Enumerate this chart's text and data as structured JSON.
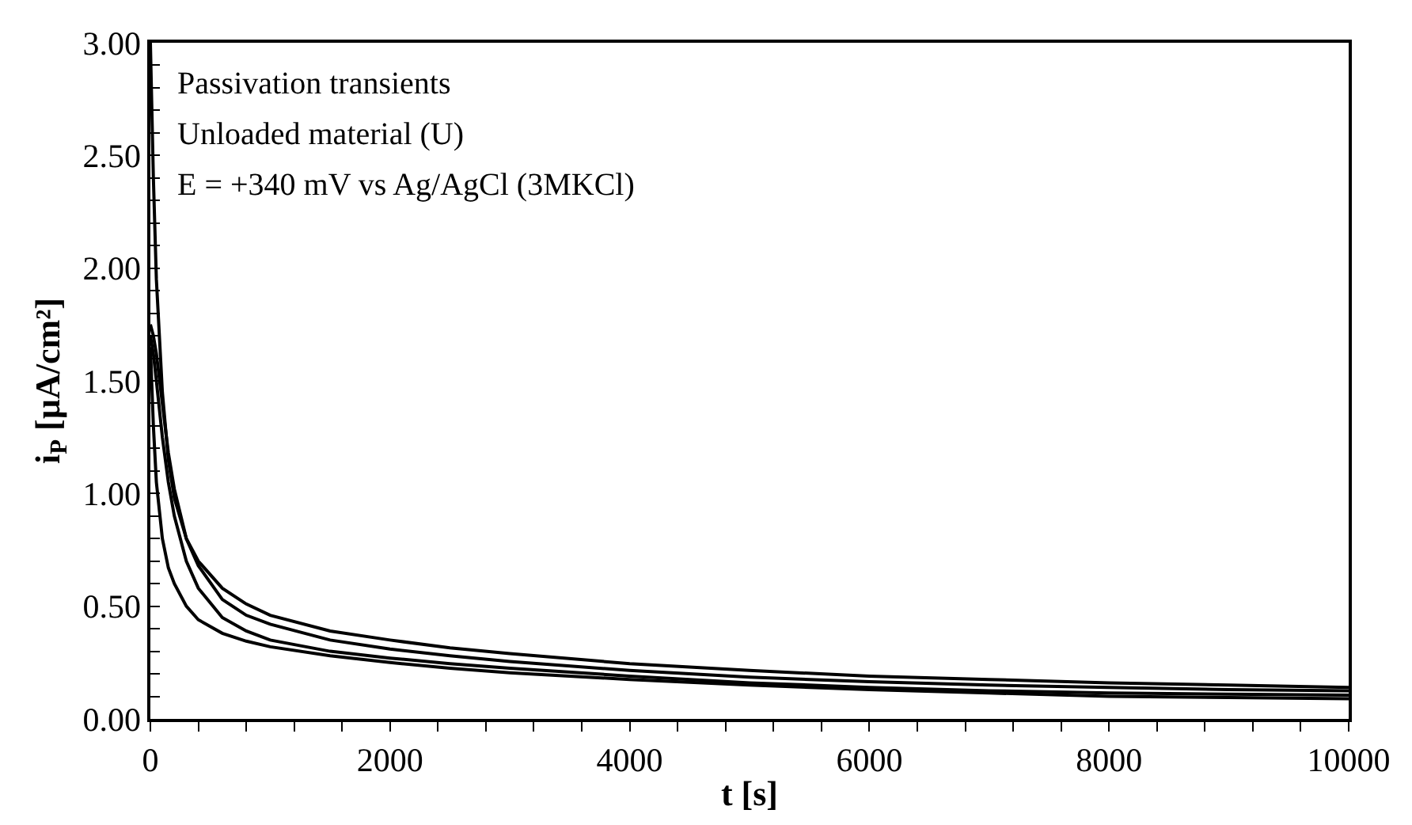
{
  "chart_data": {
    "type": "line",
    "xlabel": "t [s]",
    "ylabel": "i$_{P}$ [µA/cm²]",
    "annotations": [
      "Passivation transients",
      "Unloaded material (U)",
      "E = +340 mV vs Ag/AgCl (3MKCl)"
    ],
    "x": [
      0,
      25,
      50,
      100,
      150,
      200,
      300,
      400,
      600,
      800,
      1000,
      1500,
      2000,
      2500,
      3000,
      4000,
      5000,
      6000,
      7000,
      8000,
      9000,
      10000
    ],
    "series": [
      {
        "color": "#000000",
        "values": [
          3.0,
          2.4,
          1.95,
          1.45,
          1.15,
          0.98,
          0.8,
          0.7,
          0.58,
          0.51,
          0.46,
          0.39,
          0.35,
          0.315,
          0.29,
          0.245,
          0.215,
          0.19,
          0.175,
          0.16,
          0.15,
          0.14
        ]
      },
      {
        "color": "#000000",
        "values": [
          1.75,
          1.7,
          1.62,
          1.4,
          1.18,
          1.02,
          0.8,
          0.68,
          0.53,
          0.46,
          0.42,
          0.35,
          0.31,
          0.28,
          0.255,
          0.215,
          0.185,
          0.165,
          0.15,
          0.14,
          0.13,
          0.125
        ]
      },
      {
        "color": "#000000",
        "values": [
          1.7,
          1.62,
          1.5,
          1.25,
          1.05,
          0.9,
          0.7,
          0.58,
          0.45,
          0.39,
          0.35,
          0.3,
          0.27,
          0.245,
          0.225,
          0.19,
          0.16,
          0.14,
          0.125,
          0.115,
          0.11,
          0.105
        ]
      },
      {
        "color": "#000000",
        "values": [
          1.65,
          1.3,
          1.05,
          0.8,
          0.67,
          0.6,
          0.5,
          0.44,
          0.38,
          0.345,
          0.32,
          0.28,
          0.25,
          0.225,
          0.205,
          0.175,
          0.15,
          0.13,
          0.115,
          0.1,
          0.095,
          0.09
        ]
      }
    ],
    "xlim": [
      0,
      10000
    ],
    "xticks": [
      0,
      {
        "value": 400,
        "label": null
      },
      {
        "value": 800,
        "label": null
      },
      {
        "value": 1200,
        "label": null
      },
      {
        "value": 1600,
        "label": null
      },
      2000,
      {
        "value": 2400,
        "label": null
      },
      {
        "value": 2800,
        "label": null
      },
      {
        "value": 3200,
        "label": null
      },
      {
        "value": 3600,
        "label": null
      },
      4000,
      {
        "value": 4400,
        "label": null
      },
      {
        "value": 4800,
        "label": null
      },
      {
        "value": 5200,
        "label": null
      },
      {
        "value": 5600,
        "label": null
      },
      6000,
      {
        "value": 6400,
        "label": null
      },
      {
        "value": 6800,
        "label": null
      },
      {
        "value": 7200,
        "label": null
      },
      {
        "value": 7600,
        "label": null
      },
      8000,
      {
        "value": 8400,
        "label": null
      },
      {
        "value": 8800,
        "label": null
      },
      {
        "value": 9200,
        "label": null
      },
      {
        "value": 9600,
        "label": null
      },
      10000
    ],
    "ylim": [
      0,
      3
    ],
    "yticks": [
      {
        "value": 0,
        "label": "0.00"
      },
      {
        "value": 0.1,
        "label": null
      },
      {
        "value": 0.2,
        "label": null
      },
      {
        "value": 0.3,
        "label": null
      },
      {
        "value": 0.4,
        "label": null
      },
      {
        "value": 0.5,
        "label": "0.50"
      },
      {
        "value": 0.6,
        "label": null
      },
      {
        "value": 0.7,
        "label": null
      },
      {
        "value": 0.8,
        "label": null
      },
      {
        "value": 0.9,
        "label": null
      },
      {
        "value": 1.0,
        "label": "1.00"
      },
      {
        "value": 1.1,
        "label": null
      },
      {
        "value": 1.2,
        "label": null
      },
      {
        "value": 1.3,
        "label": null
      },
      {
        "value": 1.4,
        "label": null
      },
      {
        "value": 1.5,
        "label": "1.50"
      },
      {
        "value": 1.6,
        "label": null
      },
      {
        "value": 1.7,
        "label": null
      },
      {
        "value": 1.8,
        "label": null
      },
      {
        "value": 1.9,
        "label": null
      },
      {
        "value": 2.0,
        "label": "2.00"
      },
      {
        "value": 2.1,
        "label": null
      },
      {
        "value": 2.2,
        "label": null
      },
      {
        "value": 2.3,
        "label": null
      },
      {
        "value": 2.4,
        "label": null
      },
      {
        "value": 2.5,
        "label": "2.50"
      },
      {
        "value": 2.6,
        "label": null
      },
      {
        "value": 2.7,
        "label": null
      },
      {
        "value": 2.8,
        "label": null
      },
      {
        "value": 2.9,
        "label": null
      },
      {
        "value": 3.0,
        "label": "3.00"
      }
    ],
    "marker": "none",
    "line_style": "solid"
  }
}
